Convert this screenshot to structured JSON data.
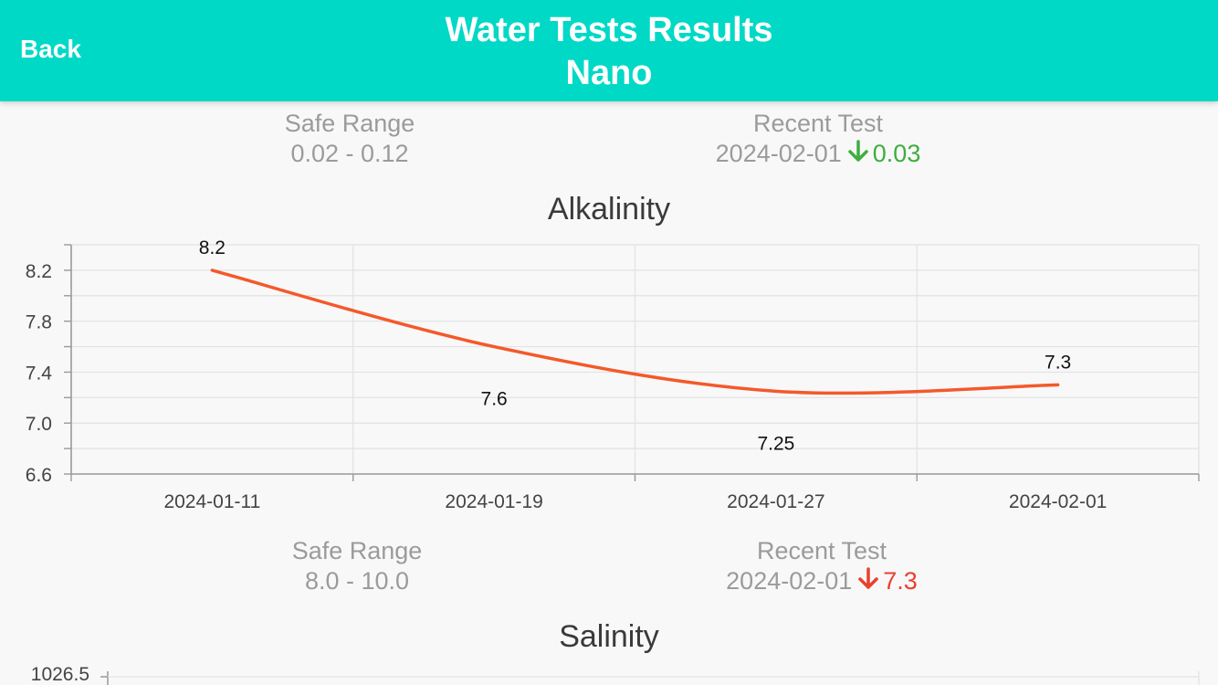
{
  "header": {
    "back_label": "Back",
    "title_line1": "Water Tests Results",
    "title_line2": "Nano"
  },
  "top_stats": {
    "safe_range_label": "Safe Range",
    "safe_range_value": "0.02 - 0.12",
    "recent_test_label": "Recent Test",
    "recent_test_date": "2024-02-01",
    "recent_test_value": "0.03",
    "recent_test_trend": "down",
    "recent_test_color": "#3fae3f"
  },
  "alkalinity": {
    "title": "Alkalinity",
    "safe_range_label": "Safe Range",
    "safe_range_value": "8.0 - 10.0",
    "recent_test_label": "Recent Test",
    "recent_test_date": "2024-02-01",
    "recent_test_value": "7.3",
    "recent_test_trend": "down",
    "recent_test_color": "#e8412e"
  },
  "salinity": {
    "title": "Salinity",
    "y_tick_top": "1026.5"
  },
  "chart_data": {
    "type": "line",
    "title": "Alkalinity",
    "x": [
      "2024-01-11",
      "2024-01-19",
      "2024-01-27",
      "2024-02-01"
    ],
    "series": [
      {
        "values": [
          8.2,
          7.6,
          7.25,
          7.3
        ],
        "color": "#f4592a"
      }
    ],
    "data_labels": [
      "8.2",
      "7.6",
      "7.25",
      "7.3"
    ],
    "y_ticks": [
      "6.6",
      "7.0",
      "7.4",
      "7.8",
      "8.2"
    ],
    "ylim": [
      6.6,
      8.4
    ],
    "grid": true
  }
}
